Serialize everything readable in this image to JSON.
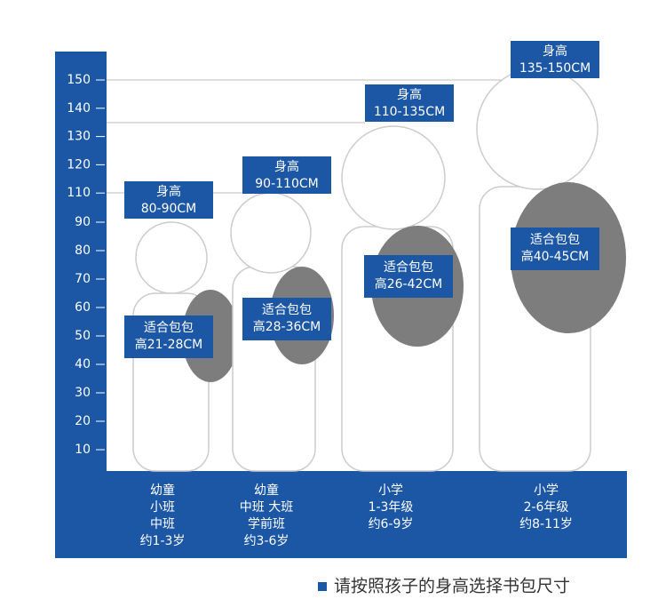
{
  "axis": {
    "ticks": [
      150,
      140,
      130,
      120,
      110,
      90,
      80,
      70,
      60,
      50,
      40,
      30,
      20,
      10
    ]
  },
  "groups": [
    {
      "height_label": [
        "身高",
        "80-90CM"
      ],
      "bag_label": [
        "适合包包",
        "高21-28CM"
      ],
      "stage": [
        "幼童",
        "小班",
        "中班",
        "约1-3岁"
      ]
    },
    {
      "height_label": [
        "身高",
        "90-110CM"
      ],
      "bag_label": [
        "适合包包",
        "高28-36CM"
      ],
      "stage": [
        "幼童",
        "中班 大班",
        "学前班",
        "约3-6岁"
      ]
    },
    {
      "height_label": [
        "身高",
        "110-135CM"
      ],
      "bag_label": [
        "适合包包",
        "高26-42CM"
      ],
      "stage": [
        "小学",
        "1-3年级",
        "约6-9岁"
      ]
    },
    {
      "height_label": [
        "身高",
        "135-150CM"
      ],
      "bag_label": [
        "适合包包",
        "高40-45CM"
      ],
      "stage": [
        "小学",
        "2-6年级",
        "约8-11岁"
      ]
    }
  ],
  "caption": "请按照孩子的身高选择书包尺寸"
}
